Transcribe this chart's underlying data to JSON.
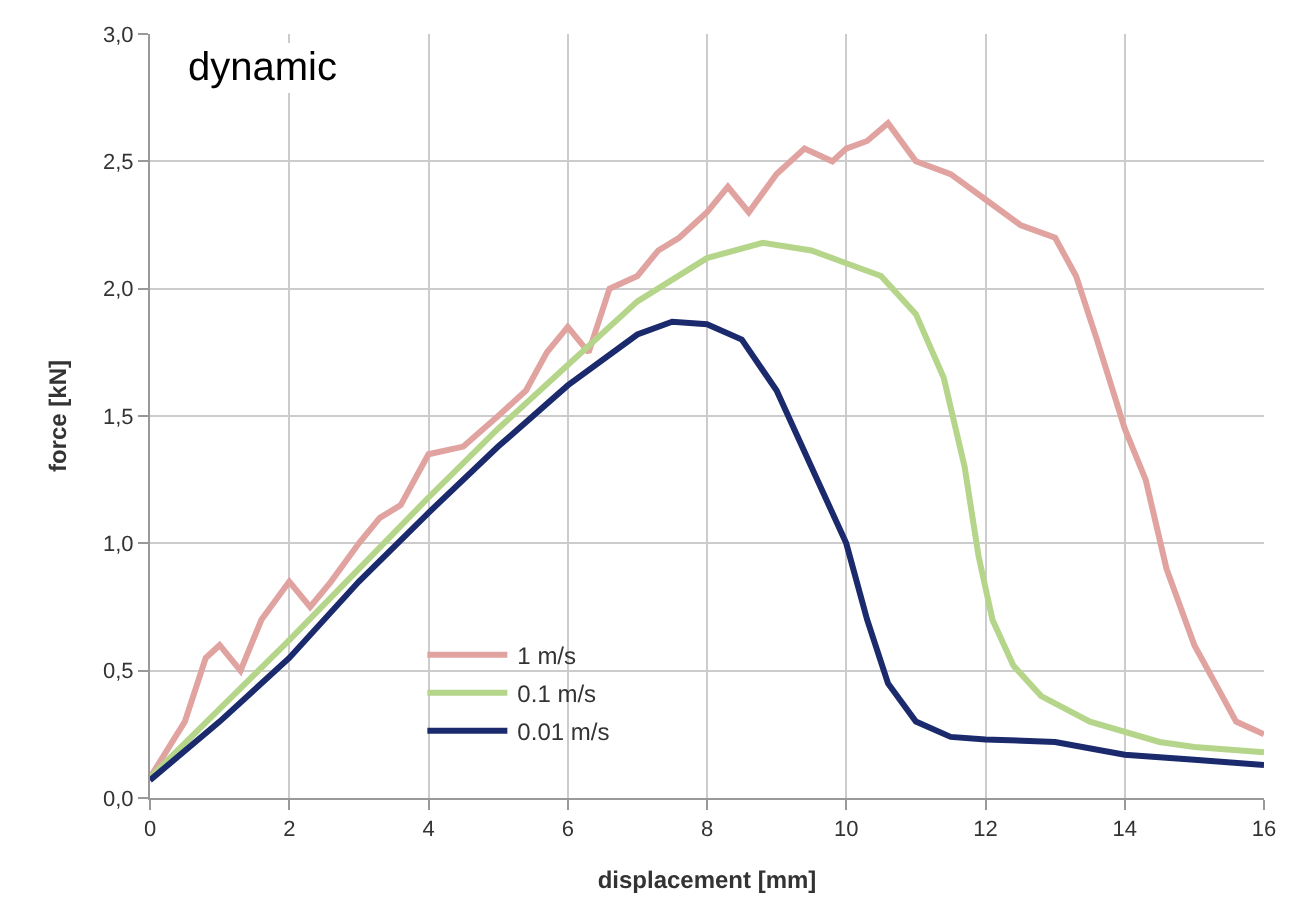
{
  "chart_data": {
    "type": "line",
    "xlabel": "displacement [mm]",
    "ylabel": "force [kN]",
    "annotations": [
      "dynamic"
    ],
    "xlim": [
      0,
      16
    ],
    "xticks": [
      0,
      2,
      4,
      6,
      8,
      10,
      12,
      14,
      16
    ],
    "ylim": [
      0,
      3
    ],
    "yticks": [
      {
        "value": 0,
        "label": "0,0"
      },
      {
        "value": 0.5,
        "label": "0,5"
      },
      {
        "value": 1,
        "label": "1,0"
      },
      {
        "value": 1.5,
        "label": "1,5"
      },
      {
        "value": 2,
        "label": "2,0"
      },
      {
        "value": 2.5,
        "label": "2,5"
      },
      {
        "value": 3,
        "label": "3,0"
      }
    ],
    "grid": true,
    "legend": "bottom left",
    "marker": "none",
    "series": [
      {
        "name": "1 m/s",
        "color": "#e0a3a0",
        "x": [
          0,
          0.5,
          0.8,
          1,
          1.3,
          1.6,
          2,
          2.3,
          2.6,
          3,
          3.3,
          3.6,
          4,
          4.5,
          5,
          5.4,
          5.7,
          6,
          6.3,
          6.6,
          7,
          7.3,
          7.6,
          8,
          8.3,
          8.6,
          9,
          9.4,
          9.8,
          10,
          10.3,
          10.6,
          11,
          11.5,
          12,
          12.5,
          13,
          13.3,
          13.6,
          14,
          14.3,
          14.6,
          15,
          15.3,
          15.6,
          16
        ],
        "values": [
          0.08,
          0.3,
          0.55,
          0.6,
          0.5,
          0.7,
          0.85,
          0.75,
          0.85,
          1.0,
          1.1,
          1.15,
          1.35,
          1.38,
          1.5,
          1.6,
          1.75,
          1.85,
          1.75,
          2.0,
          2.05,
          2.15,
          2.2,
          2.3,
          2.4,
          2.3,
          2.45,
          2.55,
          2.5,
          2.55,
          2.58,
          2.65,
          2.5,
          2.45,
          2.35,
          2.25,
          2.2,
          2.05,
          1.8,
          1.45,
          1.25,
          0.9,
          0.6,
          0.45,
          0.3,
          0.25
        ]
      },
      {
        "name": "0.1 m/s",
        "color": "#b5d68a",
        "x": [
          0,
          1,
          2,
          3,
          4,
          5,
          6,
          7,
          8,
          8.8,
          9.5,
          10,
          10.5,
          11,
          11.4,
          11.7,
          11.9,
          12.1,
          12.4,
          12.8,
          13.5,
          14.5,
          15,
          16
        ],
        "values": [
          0.08,
          0.35,
          0.62,
          0.9,
          1.18,
          1.45,
          1.7,
          1.95,
          2.12,
          2.18,
          2.15,
          2.1,
          2.05,
          1.9,
          1.65,
          1.3,
          0.95,
          0.7,
          0.52,
          0.4,
          0.3,
          0.22,
          0.2,
          0.18
        ]
      },
      {
        "name": "0.01 m/s",
        "color": "#1a2a6c",
        "x": [
          0,
          1,
          2,
          3,
          4,
          5,
          6,
          7,
          7.5,
          8,
          8.5,
          9,
          9.5,
          10,
          10.3,
          10.6,
          11,
          11.5,
          12,
          13,
          14,
          15,
          16
        ],
        "values": [
          0.07,
          0.3,
          0.55,
          0.85,
          1.12,
          1.38,
          1.62,
          1.82,
          1.87,
          1.86,
          1.8,
          1.6,
          1.3,
          1.0,
          0.7,
          0.45,
          0.3,
          0.24,
          0.23,
          0.22,
          0.17,
          0.15,
          0.13
        ]
      }
    ]
  }
}
